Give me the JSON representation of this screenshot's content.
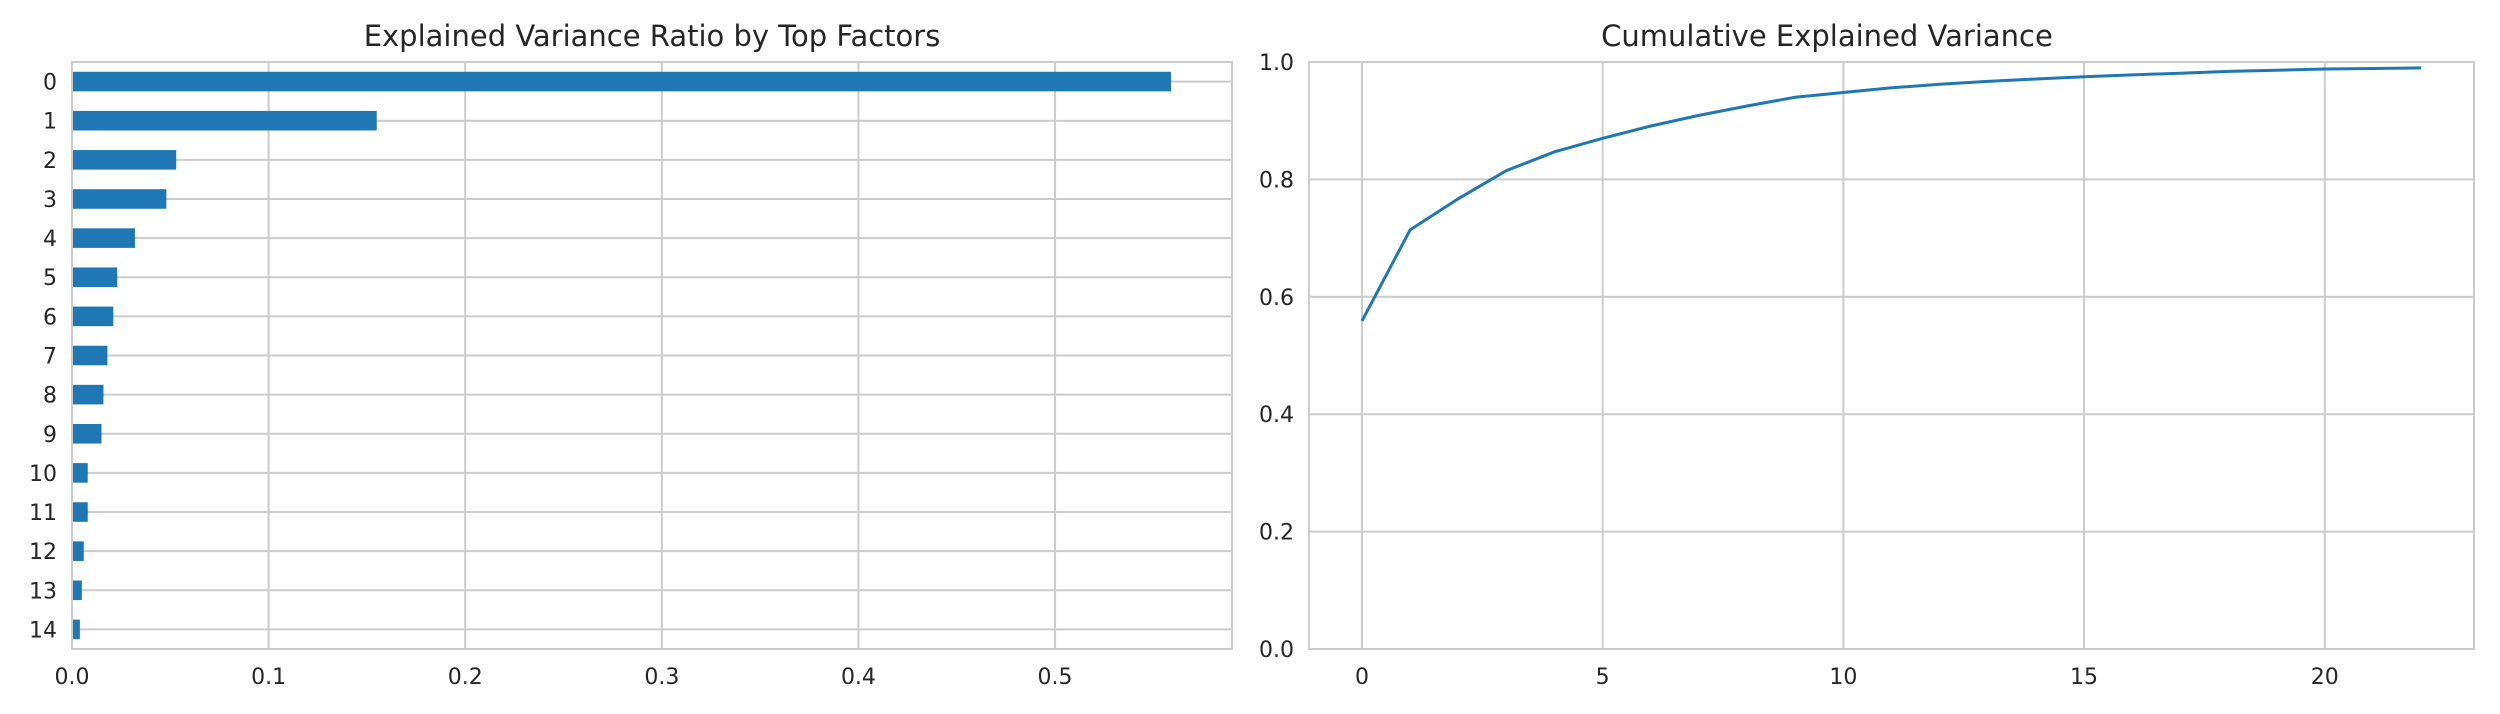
{
  "chart_data": [
    {
      "type": "bar",
      "orientation": "horizontal",
      "title": "Explained Variance Ratio by Top Factors",
      "xlabel": "",
      "ylabel": "",
      "categories": [
        "0",
        "1",
        "2",
        "3",
        "4",
        "5",
        "6",
        "7",
        "8",
        "9",
        "10",
        "11",
        "12",
        "13",
        "14"
      ],
      "values": [
        0.559,
        0.155,
        0.053,
        0.048,
        0.032,
        0.023,
        0.021,
        0.018,
        0.016,
        0.015,
        0.008,
        0.008,
        0.006,
        0.005,
        0.004
      ],
      "xlim": [
        0.0,
        0.59
      ],
      "xticks": [
        0.0,
        0.1,
        0.2,
        0.3,
        0.4,
        0.5
      ],
      "xtick_labels": [
        "0.0",
        "0.1",
        "0.2",
        "0.3",
        "0.4",
        "0.5"
      ],
      "grid": true,
      "bar_color": "#1f77b4"
    },
    {
      "type": "line",
      "title": "Cumulative Explained Variance",
      "xlabel": "",
      "ylabel": "",
      "x": [
        0,
        1,
        2,
        3,
        4,
        5,
        6,
        7,
        8,
        9,
        10,
        11,
        12,
        13,
        14,
        15,
        16,
        17,
        18,
        19,
        20,
        21,
        22
      ],
      "y": [
        0.559,
        0.714,
        0.767,
        0.815,
        0.847,
        0.87,
        0.891,
        0.909,
        0.925,
        0.94,
        0.948,
        0.956,
        0.962,
        0.967,
        0.971,
        0.975,
        0.978,
        0.981,
        0.984,
        0.986,
        0.988,
        0.989,
        0.99
      ],
      "xlim": [
        -1.1,
        23.1
      ],
      "ylim": [
        0.0,
        1.0
      ],
      "xticks": [
        0,
        5,
        10,
        15,
        20
      ],
      "xtick_labels": [
        "0",
        "5",
        "10",
        "15",
        "20"
      ],
      "yticks": [
        0.0,
        0.2,
        0.4,
        0.6,
        0.8,
        1.0
      ],
      "ytick_labels": [
        "0.0",
        "0.2",
        "0.4",
        "0.6",
        "0.8",
        "1.0"
      ],
      "grid": true,
      "line_color": "#1f77b4"
    }
  ]
}
